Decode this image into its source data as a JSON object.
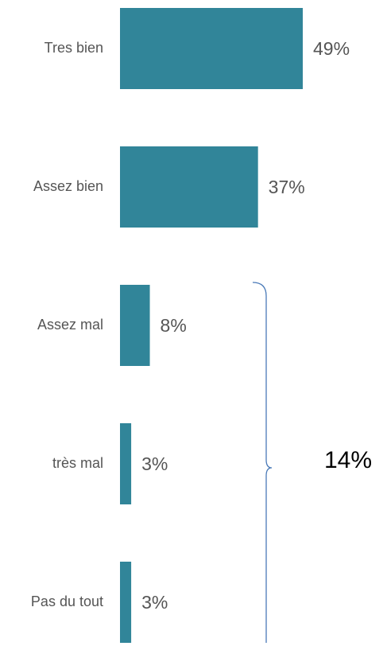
{
  "chart_data": {
    "type": "bar",
    "orientation": "horizontal",
    "categories": [
      "Tres bien",
      "Assez bien",
      "Assez mal",
      "très mal",
      "Pas du tout"
    ],
    "values": [
      49,
      37,
      8,
      3,
      3
    ],
    "value_labels": [
      "49%",
      "37%",
      "8%",
      "3%",
      "3%"
    ],
    "color": "#318599",
    "annotation": "14%"
  }
}
